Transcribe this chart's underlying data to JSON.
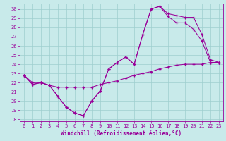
{
  "title": "",
  "xlabel": "Windchill (Refroidissement éolien,°C)",
  "ylabel": "",
  "background_color": "#c8eaea",
  "line_color": "#990099",
  "grid_color": "#9ecece",
  "xlim": [
    -0.5,
    23.5
  ],
  "ylim": [
    17.8,
    30.6
  ],
  "yticks": [
    18,
    19,
    20,
    21,
    22,
    23,
    24,
    25,
    26,
    27,
    28,
    29,
    30
  ],
  "xticks": [
    0,
    1,
    2,
    3,
    4,
    5,
    6,
    7,
    8,
    9,
    10,
    11,
    12,
    13,
    14,
    15,
    16,
    17,
    18,
    19,
    20,
    21,
    22,
    23
  ],
  "line1_x": [
    0,
    1,
    2,
    3,
    4,
    5,
    6,
    7,
    8,
    9,
    10,
    11,
    12,
    13,
    14,
    15,
    16,
    17,
    18,
    19,
    20,
    21,
    22,
    23
  ],
  "line1_y": [
    22.8,
    22.0,
    22.0,
    21.7,
    21.5,
    21.5,
    21.5,
    21.5,
    21.5,
    21.8,
    22.0,
    22.2,
    22.5,
    22.8,
    23.0,
    23.2,
    23.5,
    23.7,
    23.9,
    24.0,
    24.0,
    24.0,
    24.2,
    24.2
  ],
  "line2_x": [
    0,
    1,
    2,
    3,
    4,
    5,
    6,
    7,
    8,
    9,
    10,
    11,
    12,
    13,
    14,
    15,
    16,
    17,
    18,
    19,
    20,
    21,
    22,
    23
  ],
  "line2_y": [
    22.8,
    21.8,
    22.0,
    21.7,
    20.5,
    19.3,
    18.7,
    18.4,
    20.0,
    21.1,
    23.5,
    24.2,
    24.8,
    24.0,
    27.2,
    30.0,
    30.3,
    29.2,
    28.5,
    28.5,
    27.8,
    26.5,
    24.2,
    24.2
  ],
  "line3_x": [
    0,
    1,
    2,
    3,
    4,
    5,
    6,
    7,
    8,
    9,
    10,
    11,
    12,
    13,
    14,
    15,
    16,
    17,
    18,
    19,
    20,
    21,
    22,
    23
  ],
  "line3_y": [
    22.8,
    21.8,
    22.0,
    21.7,
    20.5,
    19.3,
    18.7,
    18.4,
    20.0,
    21.1,
    23.5,
    24.2,
    24.8,
    24.0,
    27.2,
    30.0,
    30.3,
    29.5,
    29.3,
    29.1,
    29.1,
    27.2,
    24.5,
    24.2
  ]
}
